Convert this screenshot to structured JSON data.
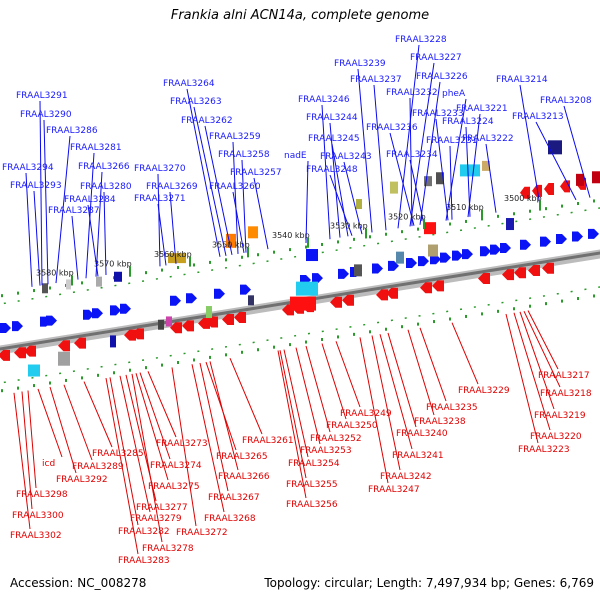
{
  "title": "Frankia alni ACN14a, complete genome",
  "footer": {
    "accession": "Accession: NC_008278",
    "topology": "Topology: circular; Length: 7,497,934 bp; Genes: 6,769"
  },
  "colors": {
    "forward": "#0a14f5",
    "reverse": "#f01010",
    "line_forward": "#0a0aee",
    "line_reverse": "#dd0000",
    "backbone": "#707070",
    "tick": "#2a9a2a"
  },
  "scale": {
    "ticks": [
      "3500 kbp",
      "3510 kbp",
      "3520 kbp",
      "3530 kbp",
      "3540 kbp",
      "3550 kbp",
      "3560 kbp",
      "3570 kbp",
      "3580 kbp"
    ]
  },
  "forward_labels": [
    "FRAAL3228",
    "FRAAL3227",
    "FRAAL3239",
    "FRAAL3226",
    "FRAAL3237",
    "FRAAL3214",
    "FRAAL3264",
    "FRAAL3291",
    "FRAAL3232",
    "pheA",
    "FRAAL3208",
    "FRAAL3263",
    "FRAAL3246",
    "FRAAL3233",
    "FRAAL3221",
    "FRAAL3290",
    "FRAAL3244",
    "FRAAL3213",
    "FRAAL3262",
    "FRAAL3236",
    "FRAAL3224",
    "FRAAL3286",
    "FRAAL3231",
    "FRAAL3245",
    "FRAAL3259",
    "FRAAL3222",
    "FRAAL3281",
    "FRAAL3234",
    "nadE",
    "FRAAL3258",
    "FRAAL3243",
    "FRAAL3294",
    "FRAAL3266",
    "FRAAL3270",
    "FRAAL3248",
    "FRAAL3257",
    "FRAAL3293",
    "FRAAL3280",
    "FRAAL3269",
    "FRAAL3260",
    "FRAAL3284",
    "FRAAL3271",
    "FRAAL3287"
  ],
  "reverse_labels": [
    "FRAAL3217",
    "FRAAL3218",
    "FRAAL3229",
    "FRAAL3219",
    "FRAAL3235",
    "FRAAL3249",
    "FRAAL3238",
    "FRAAL3250",
    "FRAAL3220",
    "FRAAL3240",
    "FRAAL3252",
    "FRAAL3261",
    "FRAAL3273",
    "FRAAL3223",
    "FRAAL3285",
    "FRAAL3253",
    "FRAAL3241",
    "FRAAL3289",
    "FRAAL3265",
    "icd",
    "FRAAL3274",
    "FRAAL3254",
    "FRAAL3292",
    "FRAAL3266",
    "FRAAL3242",
    "FRAAL3275",
    "FRAAL3255",
    "FRAAL3247",
    "FRAAL3298",
    "FRAAL3267",
    "FRAAL3256",
    "FRAAL3277",
    "FRAAL3268",
    "FRAAL3300",
    "FRAAL3279",
    "FRAAL3272",
    "FRAAL3282",
    "FRAAL3302",
    "FRAAL3278",
    "FRAAL3283"
  ]
}
